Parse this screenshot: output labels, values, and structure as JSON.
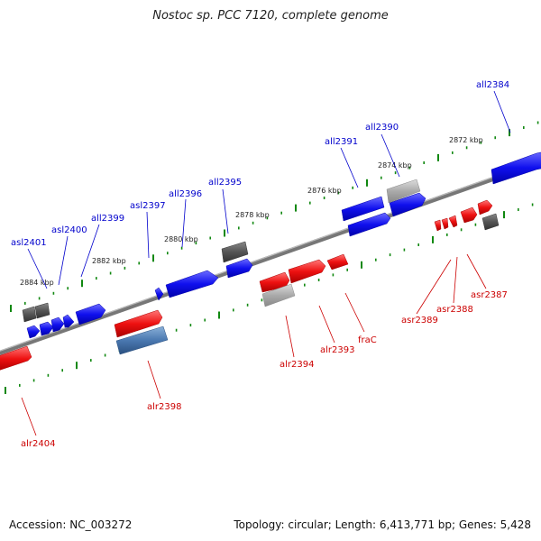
{
  "title": "Nostoc sp. PCC 7120, complete genome",
  "footer": {
    "accession": "Accession: NC_003272",
    "summary": "Topology: circular; Length: 6,413,771 bp; Genes: 5,428"
  },
  "colors": {
    "forward_gene": "#ee1111",
    "reverse_gene": "#1111ee",
    "pseudo_gene": "#555555",
    "rna_gene": "#aaaaaa",
    "forward_label": "#cc0000",
    "reverse_label": "#0000cc",
    "tick_minor": "#118811",
    "backbone": "#888888"
  },
  "scale_labels": [
    "2872 kbp",
    "2874 kbp",
    "2876 kbp",
    "2878 kbp",
    "2880 kbp",
    "2882 kbp",
    "2884 kbp"
  ],
  "reverse_labels": [
    "all2384",
    "all2390",
    "all2391",
    "all2395",
    "all2396",
    "asl2397",
    "all2399",
    "asl2400",
    "asl2401"
  ],
  "forward_labels": [
    "asr2387",
    "asr2388",
    "asr2389",
    "fraC",
    "alr2393",
    "alr2394",
    "alr2398",
    "alr2404"
  ]
}
